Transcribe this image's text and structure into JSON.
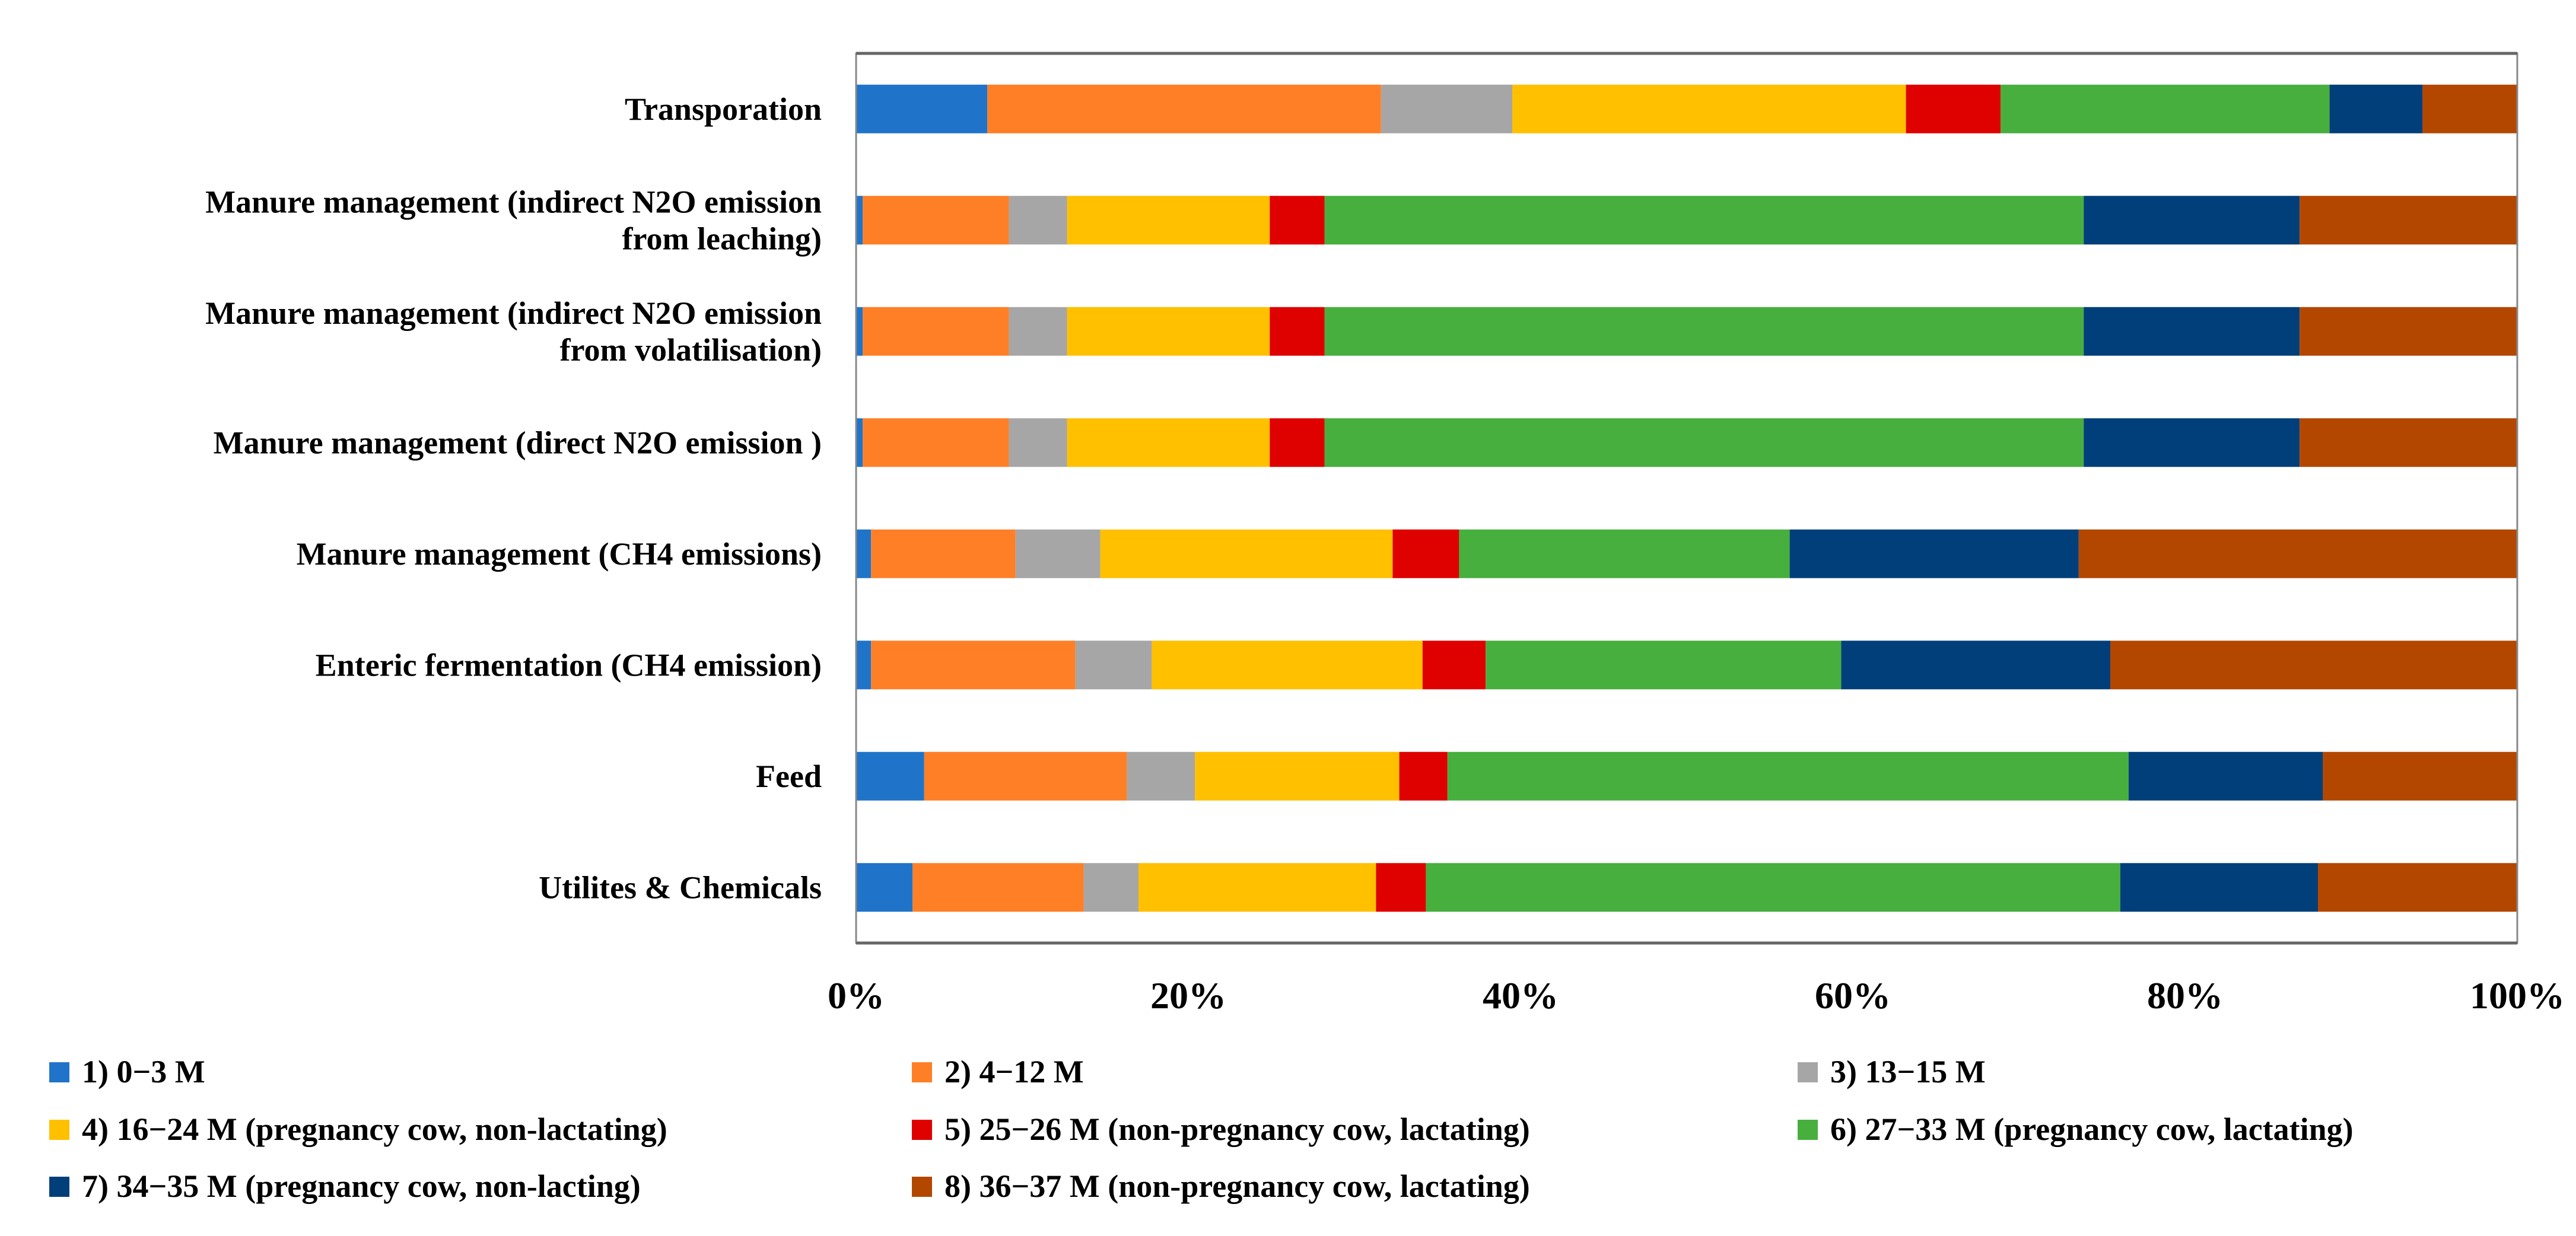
{
  "chart_data": {
    "type": "bar",
    "orientation": "horizontal",
    "stacked": "percent",
    "title": "",
    "xlabel": "",
    "ylabel": "",
    "xlim": [
      0,
      100
    ],
    "x_ticks": [
      "0%",
      "20%",
      "40%",
      "60%",
      "80%",
      "100%"
    ],
    "grid": false,
    "legend_position": "bottom",
    "categories": [
      [
        "Transporation"
      ],
      [
        "Manure management (indirect N2O emission",
        "from leaching)"
      ],
      [
        "Manure management (indirect N2O emission",
        "from volatilisation)"
      ],
      [
        "Manure management (direct N2O emission )"
      ],
      [
        "Manure management (CH4 emissions)"
      ],
      [
        "Enteric fermentation (CH4 emission)"
      ],
      [
        "Feed"
      ],
      [
        "Utilites & Chemicals"
      ]
    ],
    "series": [
      {
        "name": "1) 0−3 M",
        "color": "#1F74C9",
        "values": [
          7.9,
          0.4,
          0.4,
          0.4,
          0.9,
          0.9,
          4.1,
          3.4
        ]
      },
      {
        "name": "2) 4−12 M",
        "color": "#FF7F27",
        "values": [
          23.7,
          8.8,
          8.8,
          8.8,
          8.7,
          12.3,
          12.2,
          10.3
        ]
      },
      {
        "name": "3) 13−15 M",
        "color": "#A6A6A6",
        "values": [
          7.9,
          3.5,
          3.5,
          3.5,
          5.1,
          4.6,
          4.1,
          3.3
        ]
      },
      {
        "name": "4) 16−24 M (pregnancy cow, non-lactating)",
        "color": "#FFC000",
        "values": [
          23.7,
          12.2,
          12.2,
          12.2,
          17.6,
          16.3,
          12.3,
          14.3
        ]
      },
      {
        "name": "5) 25−26 M (non-pregnancy cow, lactating)",
        "color": "#DF0000",
        "values": [
          5.7,
          3.3,
          3.3,
          3.3,
          4.0,
          3.8,
          2.9,
          3.0
        ]
      },
      {
        "name": "6) 27−33 M (pregnancy cow, lactating)",
        "color": "#47AF3D",
        "values": [
          19.8,
          45.7,
          45.7,
          45.7,
          19.9,
          21.4,
          41.0,
          41.8
        ]
      },
      {
        "name": "7) 34−35 M (pregnancy cow,  non-lacting)",
        "color": "#003F7A",
        "values": [
          5.6,
          13.0,
          13.0,
          13.0,
          17.4,
          16.2,
          11.7,
          11.9
        ]
      },
      {
        "name": "8) 36−37 M (non-pregnancy cow, lactating)",
        "color": "#B34700",
        "values": [
          5.7,
          13.1,
          13.1,
          13.1,
          26.4,
          24.5,
          11.7,
          12.0
        ]
      }
    ]
  }
}
